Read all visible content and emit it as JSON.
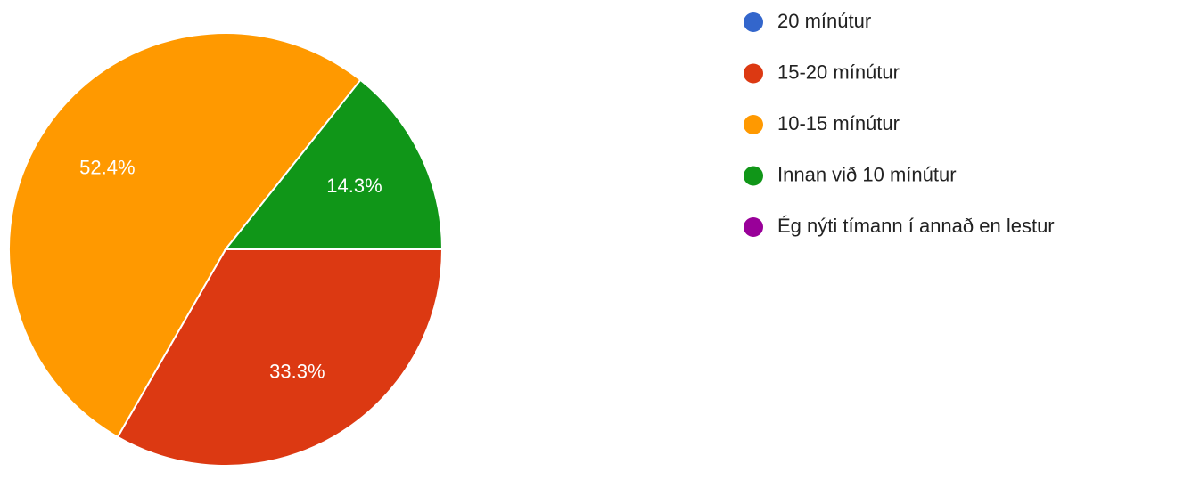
{
  "chart_data": {
    "type": "pie",
    "categories": [
      "20 mínútur",
      "15-20 mínútur",
      "10-15 mínútur",
      "Innan við 10 mínútur",
      "Ég nýti tímann í annað en lestur"
    ],
    "values": [
      0,
      33.3,
      52.4,
      14.3,
      0
    ],
    "value_labels": [
      null,
      "33.3%",
      "52.4%",
      "14.3%",
      null
    ],
    "colors": [
      "#3366cc",
      "#dc3912",
      "#ff9900",
      "#109618",
      "#990099"
    ],
    "start_angle": 90,
    "legend": "right"
  }
}
